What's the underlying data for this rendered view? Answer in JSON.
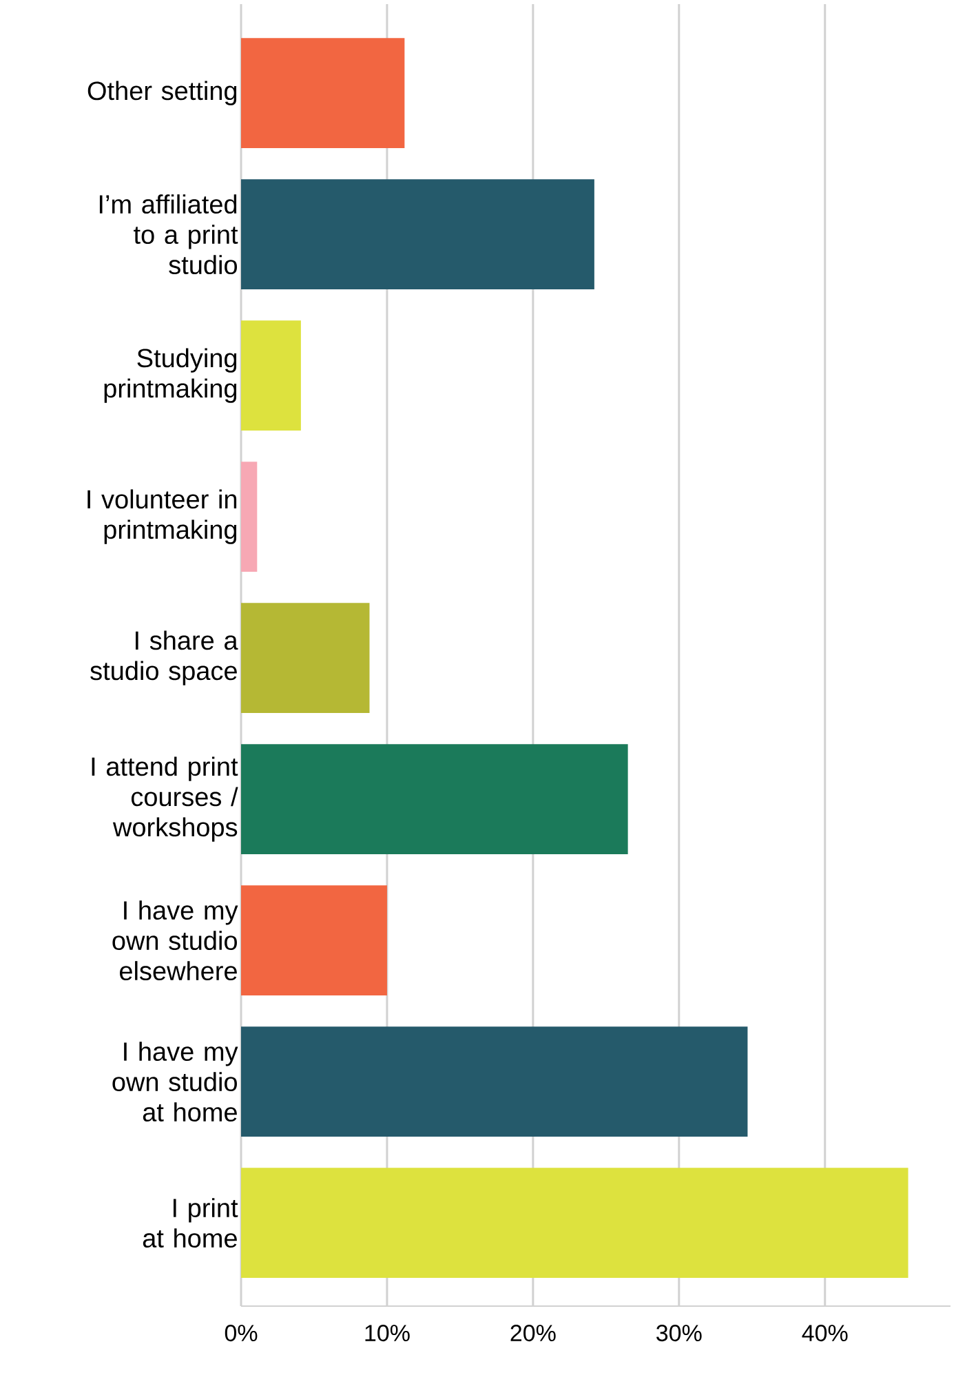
{
  "chart_data": {
    "type": "bar",
    "orientation": "horizontal",
    "categories": [
      "Other setting",
      "I’m affiliated to a print studio",
      "Studying printmaking",
      "I volunteer in printmaking",
      "I share a studio space",
      "I attend print courses / workshops",
      "I have my own studio elsewhere",
      "I have my own studio at home",
      "I print at home"
    ],
    "values": [
      11.2,
      24.2,
      4.1,
      1.1,
      8.8,
      26.5,
      10.0,
      34.7,
      45.7
    ],
    "colors": [
      "#f26641",
      "#255a6b",
      "#dde23e",
      "#f7a8b4",
      "#b5b834",
      "#1b7a5a",
      "#f26641",
      "#255a6b",
      "#dde23e"
    ],
    "xlim": [
      0,
      48.6
    ],
    "xticks": [
      {
        "value": 0,
        "label": "0%"
      },
      {
        "value": 10,
        "label": "10%"
      },
      {
        "value": 20,
        "label": "20%"
      },
      {
        "value": 30,
        "label": "30%"
      },
      {
        "value": 40,
        "label": "40%"
      }
    ],
    "grid": "x"
  }
}
